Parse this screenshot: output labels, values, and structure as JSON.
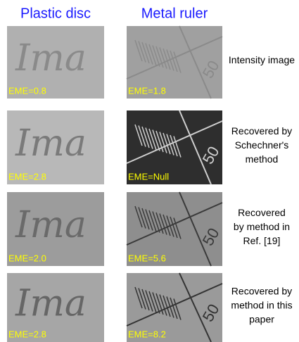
{
  "columns": [
    "Plastic disc",
    "Metal ruler"
  ],
  "disc_text": "Ima",
  "ruler_text": "50",
  "rows": [
    {
      "label": [
        "Intensity image"
      ],
      "eme": [
        "EME=0.8",
        "EME=1.8"
      ]
    },
    {
      "label": [
        "Recovered by",
        "Schechner's",
        "method"
      ],
      "eme": [
        "EME=2.8",
        "EME=Null"
      ]
    },
    {
      "label": [
        "Recovered",
        "by method in",
        "Ref. [19]"
      ],
      "eme": [
        "EME=2.0",
        "EME=5.6"
      ]
    },
    {
      "label": [
        "Recovered by",
        "method in this",
        "paper"
      ],
      "eme": [
        "EME=2.8",
        "EME=8.2"
      ]
    }
  ]
}
